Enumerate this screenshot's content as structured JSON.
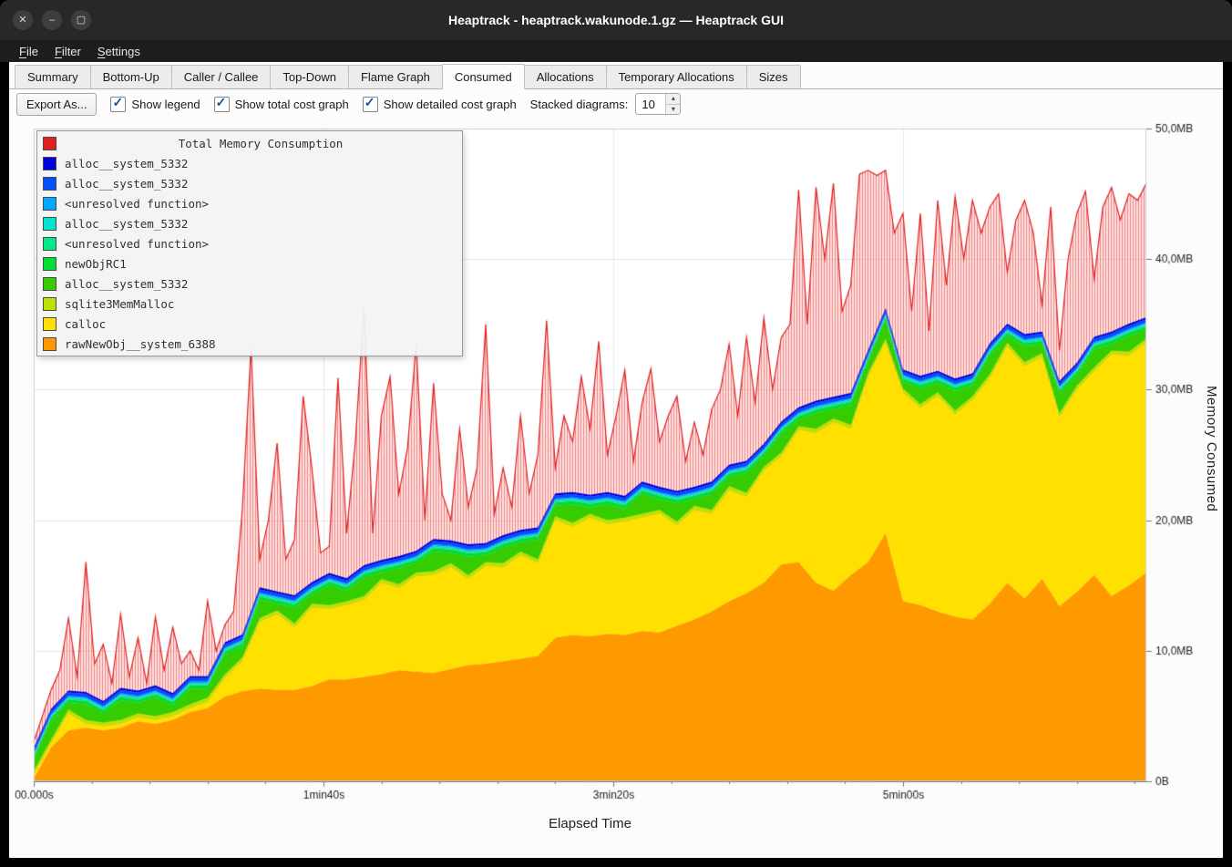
{
  "window": {
    "title": "Heaptrack - heaptrack.wakunode.1.gz — Heaptrack GUI",
    "controls": {
      "close": "✕",
      "minimize": "–",
      "maximize": "▢"
    }
  },
  "menu": {
    "items": [
      {
        "label": "File"
      },
      {
        "label": "Filter"
      },
      {
        "label": "Settings"
      }
    ]
  },
  "tabs": {
    "active": "Consumed",
    "items": [
      {
        "label": "Summary"
      },
      {
        "label": "Bottom-Up"
      },
      {
        "label": "Caller / Callee"
      },
      {
        "label": "Top-Down"
      },
      {
        "label": "Flame Graph"
      },
      {
        "label": "Consumed"
      },
      {
        "label": "Allocations"
      },
      {
        "label": "Temporary Allocations"
      },
      {
        "label": "Sizes"
      }
    ]
  },
  "toolbar": {
    "export_button": "Export As...",
    "check_glyph": "✓",
    "checkboxes": [
      {
        "label": "Show legend",
        "checked": true
      },
      {
        "label": "Show total cost graph",
        "checked": true
      },
      {
        "label": "Show detailed cost graph",
        "checked": true
      }
    ],
    "stacked_diagrams": {
      "label": "Stacked diagrams:",
      "value": "10",
      "spin_up": "▴",
      "spin_down": "▾"
    }
  },
  "chart_data": {
    "type": "area",
    "stacked": true,
    "title": "Total Memory Consumption",
    "xlabel": "Elapsed Time",
    "ylabel": "Memory Consumed",
    "x_unit": "seconds",
    "y_unit": "MB",
    "xlim": [
      0,
      384
    ],
    "ylim": [
      0,
      50
    ],
    "grid": true,
    "legend_position": "top-left",
    "x_ticks": [
      {
        "pos": 0,
        "label": "00.000s"
      },
      {
        "pos": 100,
        "label": "1min40s"
      },
      {
        "pos": 200,
        "label": "3min20s"
      },
      {
        "pos": 300,
        "label": "5min00s"
      }
    ],
    "x_minor_step": 20,
    "y_ticks": [
      {
        "pos": 0,
        "label": "0B"
      },
      {
        "pos": 10,
        "label": "10,0MB"
      },
      {
        "pos": 20,
        "label": "20,0MB"
      },
      {
        "pos": 30,
        "label": "30,0MB"
      },
      {
        "pos": 40,
        "label": "40,0MB"
      },
      {
        "pos": 50,
        "label": "50,0MB"
      }
    ],
    "stack_x_step": 6,
    "stack_series": [
      {
        "name": "rawNewObj__system_6388",
        "color": "#ff9900",
        "values": [
          0.2,
          2.6,
          3.9,
          4.1,
          3.9,
          4.1,
          4.6,
          4.4,
          4.7,
          5.3,
          5.6,
          6.5,
          6.9,
          7.1,
          7.0,
          7.0,
          7.3,
          7.8,
          7.8,
          8.0,
          8.2,
          8.5,
          8.4,
          8.3,
          8.6,
          8.9,
          9.0,
          9.2,
          9.4,
          9.6,
          11.0,
          11.2,
          11.1,
          11.3,
          11.2,
          11.5,
          11.4,
          11.9,
          12.4,
          13.0,
          13.8,
          14.4,
          15.2,
          16.6,
          16.8,
          15.2,
          14.6,
          15.8,
          16.8,
          19.0,
          13.8,
          13.5,
          13.0,
          12.6,
          12.4,
          13.6,
          15.2,
          14.0,
          15.5,
          13.4,
          14.5,
          15.8,
          14.2,
          15.0,
          16.0
        ]
      },
      {
        "name": "calloc",
        "color": "#ffe000",
        "values": [
          0.3,
          0.3,
          1.3,
          0.3,
          0.3,
          0.3,
          0.3,
          0.3,
          0.3,
          0.3,
          0.5,
          1.4,
          2.3,
          5.1,
          5.8,
          4.8,
          6.0,
          5.4,
          5.7,
          5.9,
          7.0,
          6.3,
          7.3,
          7.5,
          7.8,
          6.6,
          7.5,
          7.2,
          7.9,
          7.1,
          9.0,
          8.3,
          9.1,
          8.4,
          8.7,
          8.7,
          9.1,
          7.7,
          8.4,
          7.5,
          8.5,
          7.4,
          8.6,
          8.3,
          10.1,
          11.5,
          12.9,
          11.2,
          14.2,
          14.6,
          16.0,
          15.1,
          16.5,
          15.5,
          16.8,
          17.3,
          18.1,
          17.8,
          17.0,
          14.5,
          15.5,
          15.6,
          18.5,
          17.6,
          17.6
        ]
      },
      {
        "name": "sqlite3MemMalloc",
        "color": "#bfe000",
        "values": 0.3
      },
      {
        "name": "alloc__system_5332",
        "color": "#35cc00",
        "values": [
          0.8,
          1.4,
          0.5,
          1.2,
          0.7,
          1.5,
          0.8,
          1.4,
          0.5,
          1.2,
          0.7,
          1.5,
          0.8,
          1.4,
          0.5,
          1.2,
          0.7,
          1.5,
          0.8,
          1.4,
          0.5,
          1.2,
          0.7,
          1.5,
          0.8,
          1.4,
          0.5,
          1.2,
          0.7,
          1.5,
          0.8,
          1.4,
          0.5,
          1.2,
          0.7,
          1.5,
          0.8,
          1.4,
          0.5,
          1.2,
          0.7,
          1.5,
          0.8,
          1.4,
          0.5,
          1.2,
          0.7,
          1.5,
          0.8,
          1.4,
          0.5,
          1.2,
          0.7,
          1.5,
          0.8,
          1.4,
          0.5,
          1.2,
          0.7,
          1.5,
          0.8,
          1.4,
          0.5,
          1.2,
          0.7
        ]
      },
      {
        "name": "newObjRC1",
        "color": "#00dd33",
        "values": 0.25
      },
      {
        "name": "<unresolved function>",
        "color": "#00e987",
        "values": 0.1
      },
      {
        "name": "alloc__system_5332",
        "color": "#00e4d2",
        "values": 0.1
      },
      {
        "name": "<unresolved function>",
        "color": "#00a6ff",
        "values": 0.1
      },
      {
        "name": "alloc__system_5332",
        "color": "#0050ff",
        "values": 0.25
      },
      {
        "name": "alloc__system_5332",
        "color": "#0000e0",
        "values": 0.15
      }
    ],
    "total_series": {
      "name": "Total Memory Consumption",
      "color": "#e02020",
      "x_step": 3,
      "values": [
        3,
        5,
        7,
        8.5,
        12.5,
        8,
        16.8,
        9,
        10.5,
        7.5,
        12.8,
        8,
        11,
        7.5,
        12.6,
        8.5,
        11.8,
        9,
        10,
        8.5,
        13.8,
        10,
        12,
        13,
        20.8,
        33.2,
        17,
        20,
        25.9,
        17,
        18.5,
        29.5,
        24,
        17.5,
        18,
        30.9,
        19,
        26,
        36.3,
        19,
        28,
        31,
        22,
        25.5,
        33.5,
        20,
        30.5,
        22,
        20,
        27,
        21,
        24,
        35,
        20.5,
        24,
        21,
        28,
        22,
        25,
        35.3,
        24,
        28,
        26,
        31,
        27,
        33.7,
        25,
        28,
        31.5,
        24.5,
        29,
        31.6,
        26,
        28,
        29.5,
        24.5,
        27.5,
        25,
        28.5,
        30,
        33.5,
        28,
        34,
        29,
        35.5,
        30,
        34,
        35,
        45.3,
        35,
        45.5,
        40,
        45.8,
        36,
        38,
        46.5,
        46.8,
        46.4,
        46.8,
        42,
        43.5,
        36,
        43.5,
        34.5,
        44.5,
        38,
        44.8,
        40,
        44.5,
        42,
        44,
        45,
        39,
        43,
        44.5,
        42,
        36.5,
        44,
        33,
        40,
        43.5,
        45.2,
        38.5,
        44,
        45.5,
        43,
        45,
        44.5,
        45.8
      ]
    },
    "legend": [
      {
        "label": "alloc__system_5332",
        "color": "#0000e0"
      },
      {
        "label": "alloc__system_5332",
        "color": "#0050ff"
      },
      {
        "label": "<unresolved function>",
        "color": "#00a6ff"
      },
      {
        "label": "alloc__system_5332",
        "color": "#00e4d2"
      },
      {
        "label": "<unresolved function>",
        "color": "#00e987"
      },
      {
        "label": "newObjRC1",
        "color": "#00dd33"
      },
      {
        "label": "alloc__system_5332",
        "color": "#35cc00"
      },
      {
        "label": "sqlite3MemMalloc",
        "color": "#bfe000"
      },
      {
        "label": "calloc",
        "color": "#ffe000"
      },
      {
        "label": "rawNewObj__system_6388",
        "color": "#ff9900"
      }
    ]
  }
}
